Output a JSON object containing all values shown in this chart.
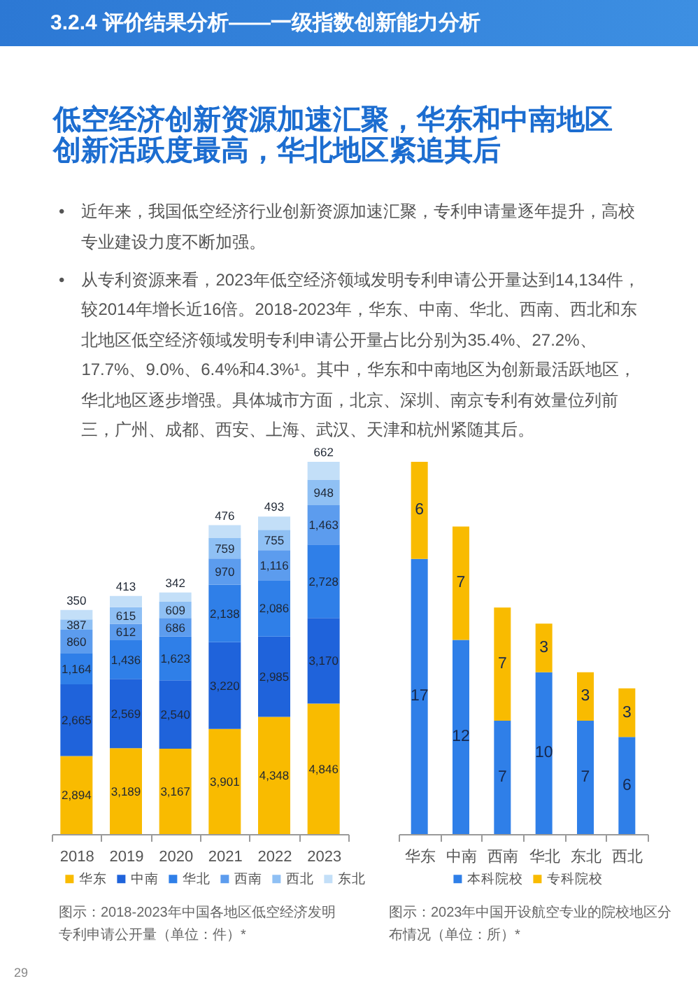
{
  "chart_data": [
    {
      "type": "other",
      "title": "3.2.4 评价结果分析——一级指数创新能力分析",
      "subtitle": "低空经济创新资源加速汇聚，华东和中南地区创新活跃度最高，华北地区紧追其后",
      "annotations": [
        "•　近年来，我国低空经济行业创新资源加速汇聚，专利申请量逐年提升，高校专业建设力度不断加强。",
        "•　从专利资源来看，2023年低空经济领域发明专利申请公开量达到14,134件，较2014年增长近16倍。2018-2023年，华东、中南、华北、西南、西北和东北地区低空经济领域发明专利申请公开量占比分别为35.4%、27.2%、17.7%、9.0%、6.4%和4.3%¹。其中，华东和中南地区为创新最活跃地区，华北地区逐步增强。具体城市方面，北京、深圳、南京专利有效量位列前三，广州、成都、西安、上海、武汉、天津和杭州紧随其后。",
        "29"
      ]
    },
    {
      "type": "bar",
      "stacked": true,
      "categories": [
        "2018",
        "2019",
        "2020",
        "2021",
        "2022",
        "2023"
      ],
      "series": [
        {
          "name": "华东",
          "color": "#f9bb00",
          "values": [
            2894,
            3189,
            3167,
            3901,
            4348,
            4846
          ],
          "value_labels": [
            "2,894",
            "3,189",
            "3,167",
            "3,901",
            "4,348",
            "4,846"
          ]
        },
        {
          "name": "中南",
          "color": "#1f63db",
          "values": [
            2665,
            2569,
            2540,
            3220,
            2985,
            3170
          ],
          "value_labels": [
            "2,665",
            "2,569",
            "2,540",
            "3,220",
            "2,985",
            "3,170"
          ]
        },
        {
          "name": "华北",
          "color": "#2f7fe8",
          "values": [
            1164,
            1436,
            1623,
            2138,
            2086,
            2728
          ],
          "value_labels": [
            "1,164",
            "1,436",
            "1,623",
            "2,138",
            "2,086",
            "2,728"
          ]
        },
        {
          "name": "西南",
          "color": "#5c9cee",
          "values": [
            860,
            612,
            686,
            970,
            1116,
            1463
          ],
          "value_labels": [
            "860",
            "612",
            "686",
            "970",
            "1,116",
            "1,463"
          ]
        },
        {
          "name": "西北",
          "color": "#8fc0f4",
          "values": [
            387,
            615,
            609,
            759,
            755,
            948
          ],
          "value_labels": [
            "387",
            "615",
            "609",
            "759",
            "755",
            "948"
          ]
        },
        {
          "name": "东北",
          "color": "#c3dff8",
          "values": [
            350,
            413,
            342,
            476,
            493,
            662
          ],
          "value_labels": [
            "350",
            "413",
            "342",
            "476",
            "493",
            "662"
          ]
        }
      ],
      "legend": "bottom",
      "annotations": [
        "图示：2018-2023年中国各地区低空经济发明专利申请公开量（单位：件）*"
      ]
    },
    {
      "type": "bar",
      "stacked": true,
      "categories": [
        "华东",
        "中南",
        "西南",
        "华北",
        "东北",
        "西北"
      ],
      "series": [
        {
          "name": "本科院校",
          "color": "#2f7fe8",
          "values": [
            17,
            12,
            7,
            10,
            7,
            6
          ]
        },
        {
          "name": "专科院校",
          "color": "#f9bb00",
          "values": [
            6,
            7,
            7,
            3,
            3,
            3
          ]
        }
      ],
      "data_labels": true,
      "legend": "bottom",
      "annotations": [
        "图示：2023年中国开设航空专业的院校地区分布情况（单位：所）*"
      ]
    }
  ]
}
